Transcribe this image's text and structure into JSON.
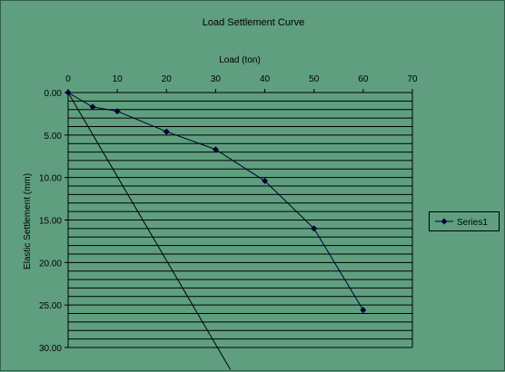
{
  "chart_data": {
    "type": "line",
    "title": "Load Settlement Curve",
    "xlabel": "Load (ton)",
    "ylabel": "Elastic Settlement (mm)",
    "xlim": [
      0,
      70
    ],
    "ylim": [
      0,
      30
    ],
    "y_inverted": true,
    "x_axis_position": "top",
    "xticks": [
      "0",
      "10",
      "20",
      "30",
      "40",
      "50",
      "60",
      "70"
    ],
    "yticks": [
      "0.00",
      "5.00",
      "10.00",
      "15.00",
      "20.00",
      "25.00",
      "30.00"
    ],
    "grid": "horizontal",
    "minor_grid_step": 1,
    "legend_position": "right",
    "series": [
      {
        "name": "Series1",
        "marker": "diamond",
        "color": "#000033",
        "points": [
          [
            0,
            0
          ],
          [
            5,
            1.7
          ],
          [
            10,
            2.2
          ],
          [
            20,
            4.6
          ],
          [
            30,
            6.7
          ],
          [
            40,
            10.4
          ],
          [
            50,
            16.0
          ],
          [
            60,
            25.6
          ]
        ]
      },
      {
        "marker": "none",
        "color": "#000000",
        "points": [
          [
            0,
            0
          ],
          [
            33,
            32.6
          ]
        ]
      }
    ],
    "colors": {
      "background": "#5f9f7f",
      "grid": "#000000",
      "series1": "#000033"
    }
  }
}
